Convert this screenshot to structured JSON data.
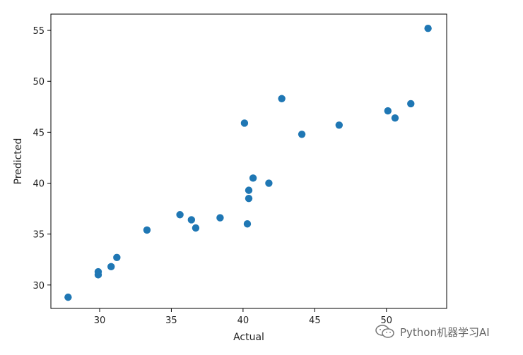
{
  "chart_data": {
    "type": "scatter",
    "title": "",
    "xlabel": "Actual",
    "ylabel": "Predicted",
    "xlim": [
      26.6,
      54.2
    ],
    "ylim": [
      27.7,
      56.6
    ],
    "xticks": [
      30,
      35,
      40,
      45,
      50
    ],
    "yticks": [
      30,
      35,
      40,
      45,
      50,
      55
    ],
    "grid": false,
    "color": "#1f77b4",
    "points": [
      {
        "x": 27.8,
        "y": 28.8
      },
      {
        "x": 29.9,
        "y": 31.0
      },
      {
        "x": 29.9,
        "y": 31.3
      },
      {
        "x": 30.8,
        "y": 31.8
      },
      {
        "x": 31.2,
        "y": 32.7
      },
      {
        "x": 33.3,
        "y": 35.4
      },
      {
        "x": 35.6,
        "y": 36.9
      },
      {
        "x": 36.4,
        "y": 36.4
      },
      {
        "x": 36.7,
        "y": 35.6
      },
      {
        "x": 38.4,
        "y": 36.6
      },
      {
        "x": 40.1,
        "y": 45.9
      },
      {
        "x": 40.3,
        "y": 36.0
      },
      {
        "x": 40.4,
        "y": 38.5
      },
      {
        "x": 40.4,
        "y": 39.3
      },
      {
        "x": 40.7,
        "y": 40.5
      },
      {
        "x": 41.8,
        "y": 40.0
      },
      {
        "x": 42.7,
        "y": 48.3
      },
      {
        "x": 44.1,
        "y": 44.8
      },
      {
        "x": 46.7,
        "y": 45.7
      },
      {
        "x": 50.1,
        "y": 47.1
      },
      {
        "x": 50.6,
        "y": 46.4
      },
      {
        "x": 51.7,
        "y": 47.8
      },
      {
        "x": 52.9,
        "y": 55.2
      }
    ]
  },
  "watermark": {
    "text": "Python机器学习AI",
    "icon": "wechat-icon"
  }
}
